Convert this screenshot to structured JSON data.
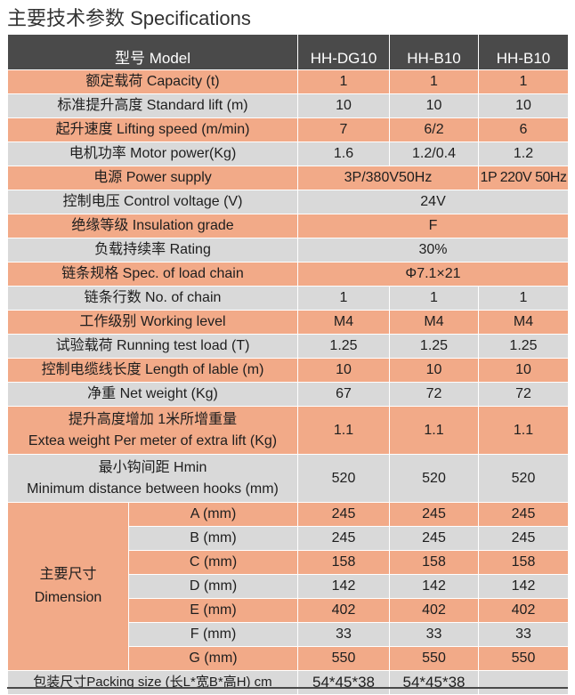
{
  "title": "主要技术参数 Specifications",
  "header": {
    "label": "型号 Model",
    "models": [
      "HH-DG10",
      "HH-B10",
      "HH-B10"
    ]
  },
  "rows": [
    {
      "label": "额定载荷 Capacity (t)",
      "values": [
        "1",
        "1",
        "1"
      ]
    },
    {
      "label": "标准提升高度 Standard lift (m)",
      "values": [
        "10",
        "10",
        "10"
      ]
    },
    {
      "label": "起升速度 Lifting speed (m/min)",
      "values": [
        "7",
        "6/2",
        "6"
      ]
    },
    {
      "label": "电机功率 Motor power(Kg)",
      "values": [
        "1.6",
        "1.2/0.4",
        "1.2"
      ]
    },
    {
      "label": "电源 Power supply",
      "merged": "3P/380V50Hz",
      "last": "1P 220V 50Hz"
    },
    {
      "label": "控制电压 Control voltage (V)",
      "merged": "24V"
    },
    {
      "label": "绝缘等级 Insulation grade",
      "merged": "F"
    },
    {
      "label": "负载持续率 Rating",
      "merged": "30%"
    },
    {
      "label": "链条规格 Spec. of load chain",
      "merged": "Φ7.1×21"
    },
    {
      "label": "链条行数 No. of chain",
      "values": [
        "1",
        "1",
        "1"
      ]
    },
    {
      "label": "工作级别 Working level",
      "values": [
        "M4",
        "M4",
        "M4"
      ]
    },
    {
      "label": "试验载荷 Running test load (T)",
      "values": [
        "1.25",
        "1.25",
        "1.25"
      ]
    },
    {
      "label": "控制电缆线长度 Length of lable (m)",
      "values": [
        "10",
        "10",
        "10"
      ]
    },
    {
      "label": "净重 Net weight (Kg)",
      "values": [
        "67",
        "72",
        "72"
      ]
    }
  ],
  "extra_weight": {
    "line1": "提升高度增加 1米所增重量",
    "line2": "Extea weight Per meter of extra lift (Kg)",
    "values": [
      "1.1",
      "1.1",
      "1.1"
    ]
  },
  "hmin": {
    "line1": "最小钩间距 Hmin",
    "line2": "Minimum distance between hooks (mm)",
    "values": [
      "520",
      "520",
      "520"
    ]
  },
  "dimension": {
    "label_cn": "主要尺寸",
    "label_en": "Dimension",
    "rows": [
      {
        "label": "A (mm)",
        "values": [
          "245",
          "245",
          "245"
        ]
      },
      {
        "label": "B (mm)",
        "values": [
          "245",
          "245",
          "245"
        ]
      },
      {
        "label": "C (mm)",
        "values": [
          "158",
          "158",
          "158"
        ]
      },
      {
        "label": "D (mm)",
        "values": [
          "142",
          "142",
          "142"
        ]
      },
      {
        "label": "E (mm)",
        "values": [
          "402",
          "402",
          "402"
        ]
      },
      {
        "label": "F (mm)",
        "values": [
          "33",
          "33",
          "33"
        ]
      },
      {
        "label": "G (mm)",
        "values": [
          "550",
          "550",
          "550"
        ]
      }
    ]
  },
  "packing": {
    "label": "包装尺寸Packing size (长L*宽B*高H) cm",
    "values": [
      "54*45*38",
      "54*45*38",
      ""
    ]
  }
}
